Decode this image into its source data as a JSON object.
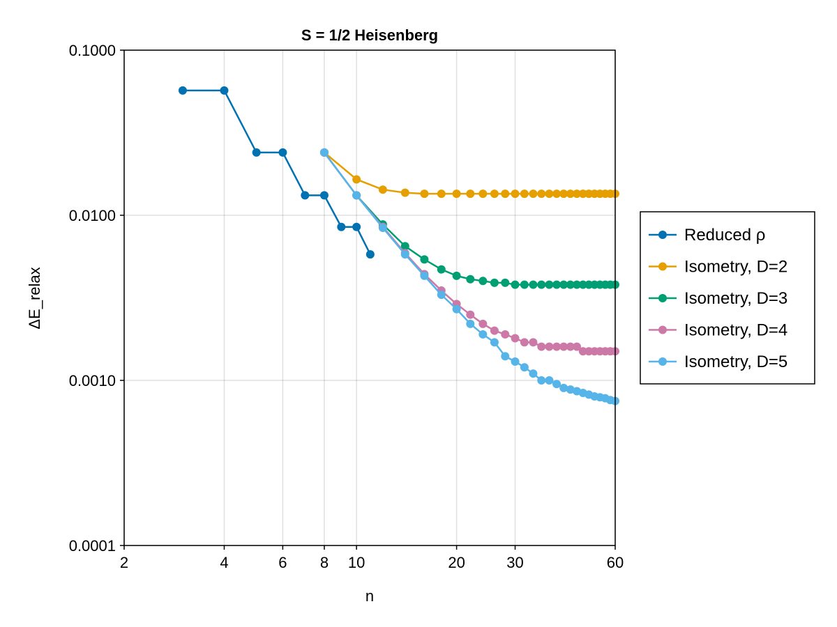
{
  "chart_data": {
    "type": "line",
    "title": "S = 1/2 Heisenberg",
    "xlabel": "n",
    "ylabel": "ΔE_relax",
    "xscale": "log",
    "yscale": "log",
    "xlim": [
      2,
      60
    ],
    "ylim": [
      0.0001,
      0.1
    ],
    "grid": true,
    "legend_position": "right",
    "x_ticks": [
      2,
      4,
      6,
      8,
      10,
      20,
      30,
      60
    ],
    "x_tick_labels": [
      "2",
      "4",
      "6",
      "8",
      "10",
      "20",
      "30",
      "60"
    ],
    "y_ticks": [
      0.0001,
      0.001,
      0.01,
      0.1
    ],
    "y_tick_labels": [
      "0.0001",
      "0.0010",
      "0.0100",
      "0.1000"
    ],
    "series": [
      {
        "name": "Reduced ρ",
        "color": "#0072b2",
        "step": true,
        "x": [
          3,
          4,
          5,
          6,
          7,
          8,
          9,
          10,
          11
        ],
        "y": [
          0.057,
          0.057,
          0.024,
          0.024,
          0.0132,
          0.0132,
          0.0085,
          0.0085,
          0.0058
        ]
      },
      {
        "name": "Isometry, D=2",
        "color": "#e69f00",
        "step": false,
        "x": [
          8,
          10,
          12,
          14,
          16,
          18,
          20,
          22,
          24,
          26,
          28,
          30,
          32,
          34,
          36,
          38,
          40,
          42,
          44,
          46,
          48,
          50,
          52,
          54,
          56,
          58,
          60
        ],
        "y": [
          0.024,
          0.0165,
          0.0143,
          0.0137,
          0.0135,
          0.0135,
          0.0135,
          0.0135,
          0.0135,
          0.0135,
          0.0135,
          0.0135,
          0.0135,
          0.0135,
          0.0135,
          0.0135,
          0.0135,
          0.0135,
          0.0135,
          0.0135,
          0.0135,
          0.0135,
          0.0135,
          0.0135,
          0.0135,
          0.0135,
          0.0135
        ]
      },
      {
        "name": "Isometry, D=3",
        "color": "#009e73",
        "step": false,
        "x": [
          8,
          10,
          12,
          14,
          16,
          18,
          20,
          22,
          24,
          26,
          28,
          30,
          32,
          34,
          36,
          38,
          40,
          42,
          44,
          46,
          48,
          50,
          52,
          54,
          56,
          58,
          60
        ],
        "y": [
          0.024,
          0.0132,
          0.0088,
          0.0065,
          0.0054,
          0.0047,
          0.0043,
          0.0041,
          0.004,
          0.0039,
          0.0039,
          0.0038,
          0.0038,
          0.0038,
          0.0038,
          0.0038,
          0.0038,
          0.0038,
          0.0038,
          0.0038,
          0.0038,
          0.0038,
          0.0038,
          0.0038,
          0.0038,
          0.0038,
          0.0038
        ]
      },
      {
        "name": "Isometry, D=4",
        "color": "#cc79a7",
        "step": false,
        "x": [
          8,
          10,
          12,
          14,
          16,
          18,
          20,
          22,
          24,
          26,
          28,
          30,
          32,
          34,
          36,
          38,
          40,
          42,
          44,
          46,
          48,
          50,
          52,
          54,
          56,
          58,
          60
        ],
        "y": [
          0.024,
          0.0132,
          0.0085,
          0.0059,
          0.0044,
          0.0035,
          0.0029,
          0.0025,
          0.0022,
          0.002,
          0.0019,
          0.0018,
          0.0017,
          0.0017,
          0.0016,
          0.0016,
          0.0016,
          0.0016,
          0.0016,
          0.0016,
          0.0015,
          0.0015,
          0.0015,
          0.0015,
          0.0015,
          0.0015,
          0.0015
        ]
      },
      {
        "name": "Isometry, D=5",
        "color": "#56b4e9",
        "step": false,
        "x": [
          8,
          10,
          12,
          14,
          16,
          18,
          20,
          22,
          24,
          26,
          28,
          30,
          32,
          34,
          36,
          38,
          40,
          42,
          44,
          46,
          48,
          50,
          52,
          54,
          56,
          58,
          60
        ],
        "y": [
          0.024,
          0.0132,
          0.0084,
          0.0058,
          0.0043,
          0.0033,
          0.0027,
          0.0022,
          0.0019,
          0.0017,
          0.0014,
          0.0013,
          0.0012,
          0.0011,
          0.001,
          0.001,
          0.00095,
          0.0009,
          0.00088,
          0.00086,
          0.00084,
          0.00082,
          0.0008,
          0.00079,
          0.00078,
          0.00076,
          0.00075
        ]
      }
    ]
  }
}
